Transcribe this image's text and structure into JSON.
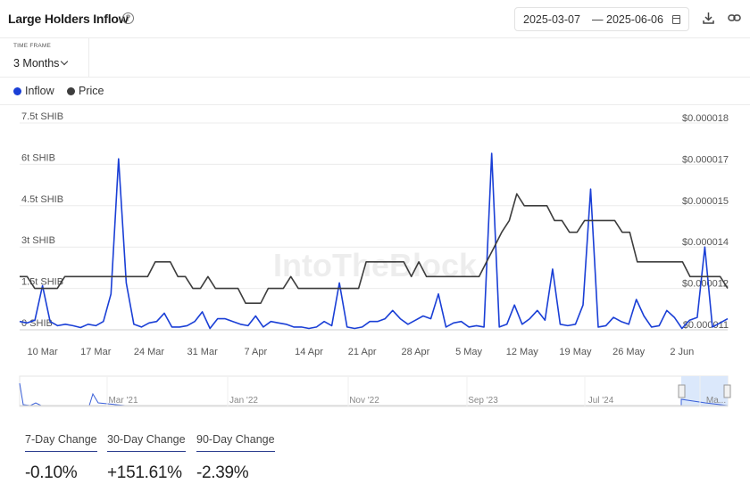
{
  "header": {
    "title": "Large Holders Inflow",
    "date_from": "2025-03-07",
    "date_sep": "—",
    "date_to": "2025-06-06"
  },
  "timeframe": {
    "label": "TIME FRAME",
    "value": "3 Months"
  },
  "legend": [
    {
      "name": "Inflow",
      "color": "#1a3fd6"
    },
    {
      "name": "Price",
      "color": "#3d3d3d"
    }
  ],
  "chart_data": {
    "type": "line",
    "x_tick_labels": [
      "10 Mar",
      "17 Mar",
      "24 Mar",
      "31 Mar",
      "7 Apr",
      "14 Apr",
      "21 Apr",
      "28 Apr",
      "5 May",
      "12 May",
      "19 May",
      "26 May",
      "2 Jun"
    ],
    "y_left_ticks": [
      "0 SHIB",
      "1.5t SHIB",
      "3t SHIB",
      "4.5t SHIB",
      "6t SHIB",
      "7.5t SHIB"
    ],
    "y_left_lim": [
      0,
      7.5
    ],
    "y_right_ticks": [
      "$0.000011",
      "$0.000012",
      "$0.000014",
      "$0.000015",
      "$0.000017",
      "$0.000018"
    ],
    "y_right_lim": [
      1.1e-05,
      1.8e-05
    ],
    "series": [
      {
        "name": "Inflow",
        "unit": "t SHIB",
        "color": "#1a3fd6",
        "axis": "left",
        "values": [
          0.3,
          0.25,
          0.35,
          1.6,
          0.3,
          0.15,
          0.2,
          0.15,
          0.08,
          0.2,
          0.15,
          0.3,
          1.3,
          6.2,
          1.7,
          0.2,
          0.1,
          0.25,
          0.3,
          0.6,
          0.1,
          0.1,
          0.15,
          0.3,
          0.65,
          0.05,
          0.4,
          0.4,
          0.3,
          0.2,
          0.15,
          0.5,
          0.1,
          0.3,
          0.25,
          0.2,
          0.1,
          0.1,
          0.05,
          0.1,
          0.3,
          0.15,
          1.7,
          0.1,
          0.05,
          0.1,
          0.3,
          0.3,
          0.4,
          0.7,
          0.4,
          0.2,
          0.35,
          0.5,
          0.4,
          1.3,
          0.1,
          0.25,
          0.3,
          0.1,
          0.15,
          0.1,
          6.4,
          0.1,
          0.2,
          0.9,
          0.2,
          0.4,
          0.7,
          0.35,
          2.2,
          0.2,
          0.15,
          0.2,
          0.9,
          5.1,
          0.1,
          0.15,
          0.45,
          0.3,
          0.2,
          1.1,
          0.5,
          0.1,
          0.15,
          0.7,
          0.45,
          0.05,
          0.35,
          0.45,
          3.0,
          0.1,
          0.25,
          0.4
        ]
      },
      {
        "name": "Price",
        "unit": "USD",
        "color": "#3d3d3d",
        "axis": "right",
        "values": [
          1.28e-05,
          1.28e-05,
          1.24e-05,
          1.24e-05,
          1.24e-05,
          1.24e-05,
          1.28e-05,
          1.28e-05,
          1.28e-05,
          1.28e-05,
          1.28e-05,
          1.28e-05,
          1.28e-05,
          1.28e-05,
          1.28e-05,
          1.28e-05,
          1.28e-05,
          1.28e-05,
          1.33e-05,
          1.33e-05,
          1.33e-05,
          1.28e-05,
          1.28e-05,
          1.24e-05,
          1.24e-05,
          1.28e-05,
          1.24e-05,
          1.24e-05,
          1.24e-05,
          1.24e-05,
          1.19e-05,
          1.19e-05,
          1.19e-05,
          1.24e-05,
          1.24e-05,
          1.24e-05,
          1.28e-05,
          1.24e-05,
          1.24e-05,
          1.24e-05,
          1.24e-05,
          1.24e-05,
          1.24e-05,
          1.24e-05,
          1.24e-05,
          1.24e-05,
          1.33e-05,
          1.33e-05,
          1.33e-05,
          1.33e-05,
          1.33e-05,
          1.33e-05,
          1.28e-05,
          1.33e-05,
          1.28e-05,
          1.28e-05,
          1.28e-05,
          1.28e-05,
          1.28e-05,
          1.28e-05,
          1.28e-05,
          1.28e-05,
          1.33e-05,
          1.38e-05,
          1.43e-05,
          1.47e-05,
          1.56e-05,
          1.52e-05,
          1.52e-05,
          1.52e-05,
          1.52e-05,
          1.47e-05,
          1.47e-05,
          1.43e-05,
          1.43e-05,
          1.47e-05,
          1.47e-05,
          1.47e-05,
          1.47e-05,
          1.47e-05,
          1.43e-05,
          1.43e-05,
          1.33e-05,
          1.33e-05,
          1.33e-05,
          1.33e-05,
          1.33e-05,
          1.33e-05,
          1.33e-05,
          1.28e-05,
          1.28e-05,
          1.28e-05,
          1.28e-05,
          1.28e-05,
          1.24e-05
        ]
      }
    ],
    "navigator_labels": [
      "Mar '21",
      "Jan '22",
      "Nov '22",
      "Sep '23",
      "Jul '24",
      "Ma..."
    ],
    "grid": true,
    "watermark": "IntoTheBlock"
  },
  "changes": [
    {
      "label": "7-Day Change",
      "value": "-0.10%"
    },
    {
      "label": "30-Day Change",
      "value": "+151.61%"
    },
    {
      "label": "90-Day Change",
      "value": "-2.39%"
    }
  ]
}
